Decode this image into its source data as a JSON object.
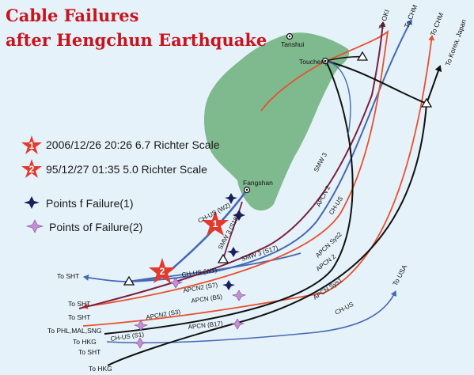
{
  "title": {
    "line1": "Cable Failures",
    "line2": "after Hengchun Earthquake"
  },
  "legend": {
    "quake1_number": "1",
    "quake1_text": "2006/12/26 20:26 6.7 Richter Scale",
    "quake2_number": "2",
    "quake2_text": "95/12/27 01:35 5.0 Richter Scale",
    "failure1_text": "Points f Failure(1)",
    "failure2_text": "Points of Failure(2)"
  },
  "map_markers": {
    "quake1_number": "1",
    "quake2_number": "2"
  },
  "places": {
    "tanshui": "Tanshui",
    "toucheng": "Toucheng",
    "fangshan": "Fangshan"
  },
  "destinations": {
    "oki": "To OKI",
    "chm1": "To CHM",
    "chm2": "To CHM",
    "korea_japan": "To Korea, Japan",
    "usa": "To USA",
    "sht1": "To SHT",
    "sht2": "To SHT",
    "sht3": "To SHT",
    "sht4": "To SHT",
    "phl": "To PHL,MAL,SNG",
    "hkg1": "To HKG",
    "hkg2": "To HKG"
  },
  "cable_labels": {
    "smw3": "SMW 3",
    "apcn2_a": "APCN 2",
    "apcn2_b": "APCN 2",
    "chus_a": "CH-US",
    "chus_b": "CH-US",
    "apcn_sys2": "APCN Sys2",
    "apcn_sys1": "APCN Sys1",
    "chus_w2": "CH-US (W2)",
    "smw3_s18": "SMW 3 (S18)",
    "smw3_s17": "SMW 3 (S17)",
    "chus_w1": "CH-US (W1)",
    "apcn2_s7": "APCN2 (S7)",
    "apcn_b5": "APCN (B5)",
    "apcn2_s3": "APCN2 (S3)",
    "apcn_b17": "APCN (B17)",
    "chus_s1": "CH-US (S1)"
  },
  "colors": {
    "sea": "#e6f2fa",
    "land": "#7fb98e",
    "title_red": "#c8141e",
    "star_red": "#e33a2e",
    "failure1": "#1c1f5e",
    "failure2": "#c48fd4",
    "cable_blue": "#4568b4",
    "cable_orange": "#e8502e",
    "cable_maroon": "#7a2140",
    "cable_black": "#111111"
  }
}
